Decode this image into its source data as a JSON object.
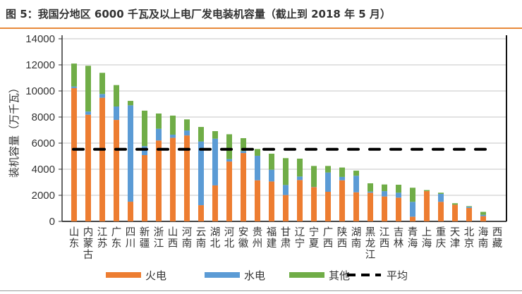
{
  "title": "图 5：我国分地区 6000 千瓦及以上电厂发电装机容量（截止到 2018 年 5 月）",
  "chart_data": {
    "type": "bar",
    "stacked": true,
    "ylabel": "装机容量（万千瓦）",
    "xlabel": "",
    "ylim": [
      0,
      14000
    ],
    "yticks": [
      0,
      2000,
      4000,
      6000,
      8000,
      10000,
      12000,
      14000
    ],
    "grid": true,
    "legend_placement": "bottom",
    "categories": [
      "山东",
      "内蒙古",
      "江苏",
      "广东",
      "四川",
      "新疆",
      "浙江",
      "山西",
      "河南",
      "云南",
      "湖北",
      "河北",
      "安徽",
      "贵州",
      "福建",
      "甘肃",
      "辽宁",
      "宁夏",
      "广西",
      "陕西",
      "湖南",
      "黑龙江",
      "江西",
      "吉林",
      "青海",
      "上海",
      "重庆",
      "天津",
      "北京",
      "海南",
      "西藏"
    ],
    "series": [
      {
        "name": "火电",
        "color": "#ed7d31",
        "values": [
          10220,
          8180,
          9480,
          7780,
          1510,
          5080,
          6200,
          6410,
          6590,
          1240,
          2760,
          4590,
          5240,
          3150,
          3060,
          2020,
          3170,
          2630,
          2270,
          3150,
          2230,
          2200,
          1910,
          1820,
          360,
          2320,
          1500,
          1280,
          1030,
          400,
          0
        ]
      },
      {
        "name": "水电",
        "color": "#5b9bd5",
        "values": [
          120,
          240,
          290,
          1030,
          7390,
          690,
          900,
          240,
          380,
          4890,
          3580,
          180,
          150,
          1880,
          900,
          770,
          270,
          20,
          1480,
          260,
          1270,
          90,
          410,
          380,
          1140,
          0,
          610,
          0,
          90,
          100,
          0
        ]
      },
      {
        "name": "其他",
        "color": "#70ad47",
        "values": [
          1760,
          3510,
          1620,
          1640,
          340,
          2720,
          1170,
          1460,
          850,
          1110,
          580,
          1910,
          990,
          520,
          1230,
          2060,
          1370,
          1600,
          500,
          720,
          390,
          630,
          510,
          610,
          1080,
          80,
          90,
          110,
          50,
          230,
          0
        ]
      }
    ],
    "average": {
      "name": "平均",
      "color": "#000000",
      "value": 5530,
      "style": "dashed"
    }
  }
}
